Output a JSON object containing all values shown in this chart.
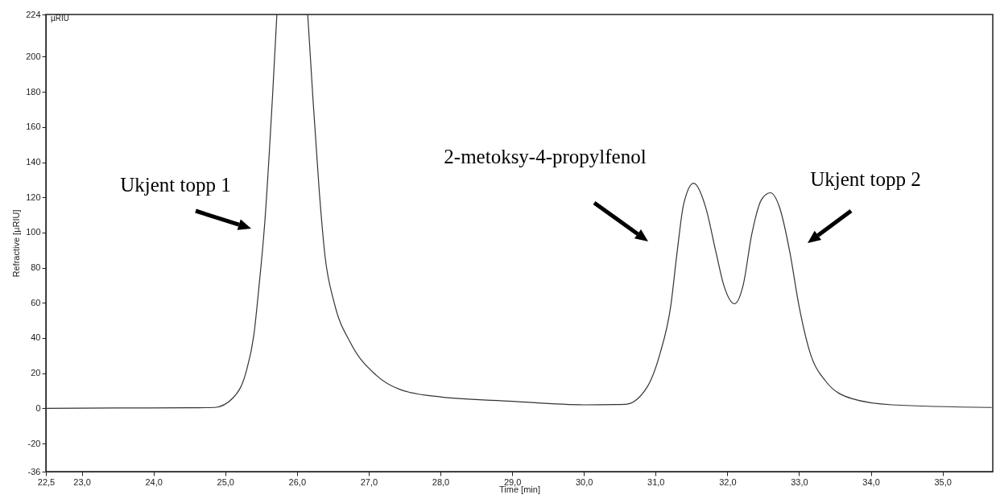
{
  "chart_data": {
    "type": "line",
    "xlabel": "Time [min]",
    "ylabel": "Refractive [µRIU]",
    "x": [
      22.5,
      23.5,
      24.5,
      24.85,
      25.11,
      25.29,
      25.4,
      25.47,
      25.55,
      25.66,
      25.72,
      25.95,
      26.15,
      26.22,
      26.31,
      26.39,
      26.52,
      26.75,
      27.1,
      27.45,
      28.0,
      29.0,
      30.0,
      30.58,
      30.88,
      31.06,
      31.21,
      31.3,
      31.39,
      31.53,
      31.7,
      31.84,
      31.95,
      32.1,
      32.22,
      32.34,
      32.48,
      32.6,
      32.73,
      32.87,
      33.0,
      33.15,
      33.37,
      33.74,
      34.3,
      35.68
    ],
    "series": [
      {
        "color": "#333333",
        "values": [
          0,
          0.2,
          0.3,
          0.5,
          6,
          20.6,
          42,
          69,
          105,
          178,
          224,
          null,
          224,
          178,
          124,
          87,
          60,
          37,
          19,
          10.5,
          6.5,
          4,
          2,
          2.3,
          12,
          31,
          58,
          89,
          116,
          128,
          114,
          89,
          70,
          59.5,
          70,
          99,
          119,
          122.6,
          114,
          89,
          58,
          32,
          15.5,
          5.5,
          2,
          0.5
        ]
      }
    ],
    "xlim": [
      22.5,
      35.7
    ],
    "ylim": [
      -36,
      224
    ],
    "xticks": [
      {
        "value": 22.5,
        "label": "22,5"
      },
      {
        "value": 23,
        "label": "23,0"
      },
      {
        "value": 24,
        "label": "24,0"
      },
      {
        "value": 25,
        "label": "25,0"
      },
      {
        "value": 26,
        "label": "26,0"
      },
      {
        "value": 27,
        "label": "27,0"
      },
      {
        "value": 28,
        "label": "28,0"
      },
      {
        "value": 29,
        "label": "29,0"
      },
      {
        "value": 30,
        "label": "30,0"
      },
      {
        "value": 31,
        "label": "31,0"
      },
      {
        "value": 32,
        "label": "32,0"
      },
      {
        "value": 33,
        "label": "33,0"
      },
      {
        "value": 34,
        "label": "34,0"
      },
      {
        "value": 35,
        "label": "35,0"
      }
    ],
    "yticks": [
      -36,
      -20,
      0,
      20,
      40,
      60,
      80,
      100,
      120,
      140,
      160,
      180,
      200,
      224
    ],
    "grid": false,
    "marker": "none",
    "line_style": "solid",
    "annotations": [
      "µRIU",
      "Ukjent topp 1",
      "2-metoksy-4-propylfenol",
      "Ukjent topp 2"
    ]
  }
}
